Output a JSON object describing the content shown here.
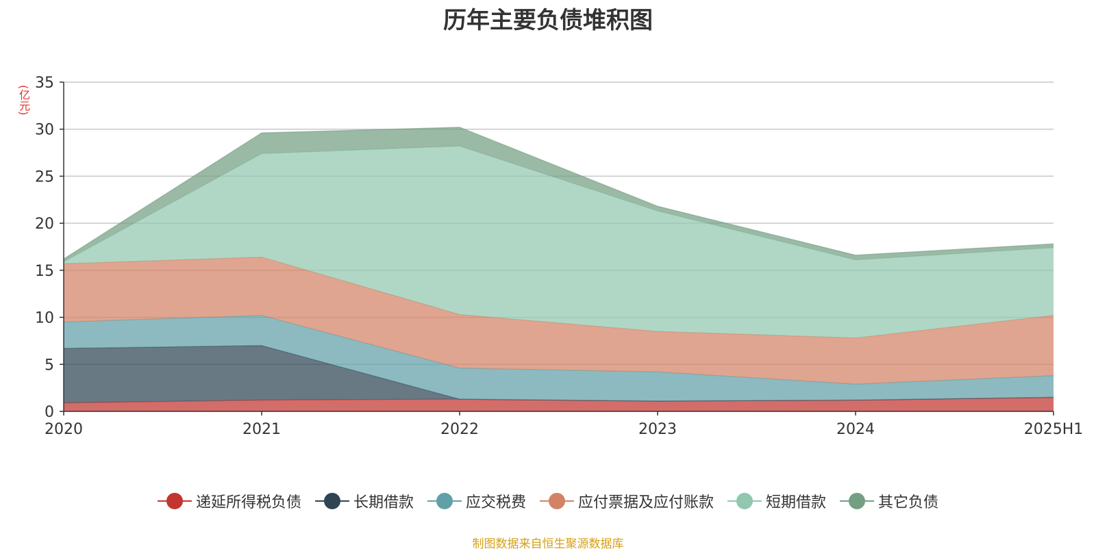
{
  "chart_data": {
    "type": "area",
    "stacked": true,
    "title": "历年主要负债堆积图",
    "unit_label": "(亿元)",
    "x": [
      "2020",
      "2021",
      "2022",
      "2023",
      "2024",
      "2025H1"
    ],
    "ylim": [
      0,
      35
    ],
    "yticks": [
      0,
      5,
      10,
      15,
      20,
      25,
      30,
      35
    ],
    "grid": true,
    "legend_position": "bottom",
    "series": [
      {
        "name": "递延所得税负债",
        "color": "#c23531",
        "values": [
          0.9,
          1.2,
          1.3,
          1.1,
          1.2,
          1.5
        ]
      },
      {
        "name": "长期借款",
        "color": "#2f4554",
        "values": [
          5.8,
          5.8,
          0.0,
          0.0,
          0.0,
          0.0
        ]
      },
      {
        "name": "应交税费",
        "color": "#61a0a8",
        "values": [
          2.8,
          3.2,
          3.3,
          3.1,
          1.7,
          2.3
        ]
      },
      {
        "name": "应付票据及应付账款",
        "color": "#d48265",
        "values": [
          6.2,
          6.2,
          5.7,
          4.3,
          4.9,
          6.4
        ]
      },
      {
        "name": "短期借款",
        "color": "#91c7ae",
        "values": [
          0.2,
          11.0,
          17.9,
          12.8,
          8.3,
          7.2
        ]
      },
      {
        "name": "其它负债",
        "color": "#749f83",
        "values": [
          0.3,
          2.2,
          2.0,
          0.5,
          0.5,
          0.4
        ]
      }
    ]
  },
  "footer": {
    "source": "制图数据来自恒生聚源数据库"
  }
}
